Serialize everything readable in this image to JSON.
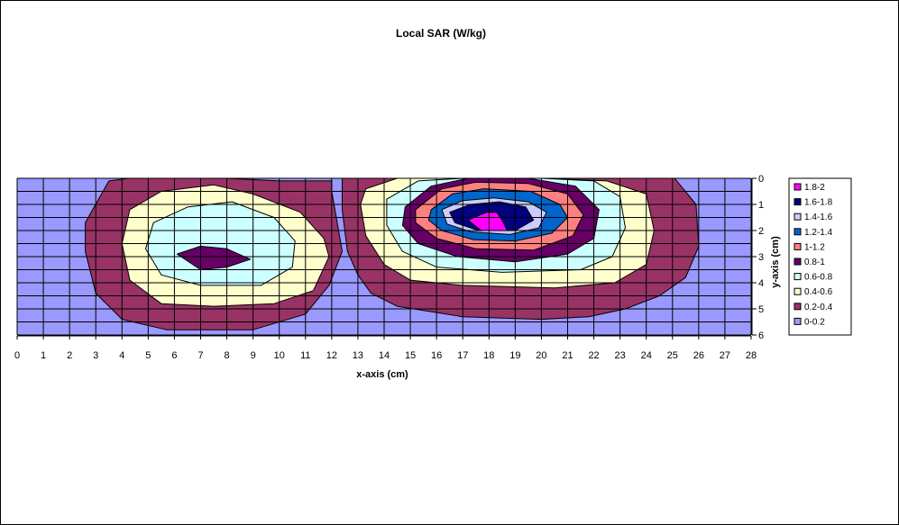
{
  "chart_data": {
    "type": "heatmap",
    "subtype": "contour",
    "title": "Local SAR (W/kg)",
    "xlabel": "x-axis (cm)",
    "ylabel": "y-axis (cm)",
    "xlim": [
      0,
      28
    ],
    "ylim": [
      0,
      6
    ],
    "y_inverted": true,
    "x_ticks": [
      "0",
      "1",
      "2",
      "3",
      "4",
      "5",
      "6",
      "7",
      "8",
      "9",
      "10",
      "11",
      "12",
      "13",
      "14",
      "15",
      "16",
      "17",
      "18",
      "19",
      "20",
      "21",
      "22",
      "23",
      "24",
      "25",
      "26",
      "27",
      "28"
    ],
    "y_ticks": [
      "0",
      "1",
      "2",
      "3",
      "4",
      "5",
      "6"
    ],
    "grid": true,
    "legend_position": "right",
    "levels": [
      {
        "label": "1.8-2",
        "min": 1.8,
        "max": 2.0,
        "color": "#ff00ff"
      },
      {
        "label": "1.6-1.8",
        "min": 1.6,
        "max": 1.8,
        "color": "#000080"
      },
      {
        "label": "1.4-1.6",
        "min": 1.4,
        "max": 1.6,
        "color": "#ccccff"
      },
      {
        "label": "1.2-1.4",
        "min": 1.2,
        "max": 1.4,
        "color": "#0066cc"
      },
      {
        "label": "1-1.2",
        "min": 1.0,
        "max": 1.2,
        "color": "#ff8080"
      },
      {
        "label": "0.8-1",
        "min": 0.8,
        "max": 1.0,
        "color": "#660066"
      },
      {
        "label": "0.6-0.8",
        "min": 0.6,
        "max": 0.8,
        "color": "#ccffff"
      },
      {
        "label": "0.4-0.6",
        "min": 0.4,
        "max": 0.6,
        "color": "#ffffcc"
      },
      {
        "label": "0.2-0.4",
        "min": 0.2,
        "max": 0.4,
        "color": "#993366"
      },
      {
        "label": "0-0.2",
        "min": 0.0,
        "max": 0.2,
        "color": "#9999ff"
      }
    ],
    "contours": [
      {
        "level": "0.2-0.4",
        "points": [
          [
            3.5,
            0.1
          ],
          [
            5,
            -0.1
          ],
          [
            8,
            0
          ],
          [
            10,
            0.1
          ],
          [
            12,
            0.1
          ],
          [
            12,
            0.5
          ],
          [
            12.4,
            2.8
          ],
          [
            11.9,
            4.1
          ],
          [
            11,
            5.2
          ],
          [
            9,
            5.8
          ],
          [
            5.7,
            5.8
          ],
          [
            4,
            5.4
          ],
          [
            3,
            4.4
          ],
          [
            2.6,
            2.8
          ],
          [
            2.6,
            1.7
          ]
        ]
      },
      {
        "level": "0.2-0.4",
        "points": [
          [
            12.4,
            0
          ],
          [
            14.5,
            -0.1
          ],
          [
            17,
            0
          ],
          [
            20,
            0
          ],
          [
            23.5,
            -0.2
          ],
          [
            25,
            -0.1
          ],
          [
            25.9,
            1
          ],
          [
            26,
            2.6
          ],
          [
            25.5,
            3.8
          ],
          [
            24.5,
            4.5
          ],
          [
            23.2,
            5
          ],
          [
            21.8,
            5.3
          ],
          [
            20,
            5.4
          ],
          [
            17,
            5.3
          ],
          [
            14.5,
            4.9
          ],
          [
            13.5,
            4.4
          ],
          [
            13,
            3.7
          ],
          [
            12.6,
            2.8
          ],
          [
            12.4,
            1.2
          ]
        ]
      },
      {
        "level": "0.4-0.6",
        "points": [
          [
            4.3,
            1.2
          ],
          [
            5.5,
            0.5
          ],
          [
            7.5,
            0.25
          ],
          [
            9,
            0.6
          ],
          [
            10.8,
            1.3
          ],
          [
            11.7,
            2.3
          ],
          [
            11.9,
            3
          ],
          [
            11.3,
            4.3
          ],
          [
            9.8,
            4.8
          ],
          [
            7.5,
            4.9
          ],
          [
            5.5,
            4.8
          ],
          [
            4.3,
            3.9
          ],
          [
            4,
            2.5
          ]
        ]
      },
      {
        "level": "0.4-0.6",
        "points": [
          [
            13.3,
            0.4
          ],
          [
            14.5,
            0
          ],
          [
            17,
            0
          ],
          [
            20,
            0
          ],
          [
            22.5,
            0.1
          ],
          [
            24,
            0.6
          ],
          [
            24.3,
            2
          ],
          [
            24,
            3.3
          ],
          [
            22.8,
            4
          ],
          [
            20.5,
            4.2
          ],
          [
            17,
            4.1
          ],
          [
            15,
            3.9
          ],
          [
            14,
            3.3
          ],
          [
            13.3,
            2.2
          ],
          [
            13.1,
            1
          ]
        ]
      },
      {
        "level": "0.6-0.8",
        "points": [
          [
            5.2,
            1.7
          ],
          [
            6.5,
            1.1
          ],
          [
            8.2,
            0.9
          ],
          [
            9.8,
            1.5
          ],
          [
            10.6,
            2.4
          ],
          [
            10.5,
            3.4
          ],
          [
            9.3,
            4.1
          ],
          [
            7,
            4.1
          ],
          [
            5.5,
            3.7
          ],
          [
            4.9,
            2.7
          ]
        ]
      },
      {
        "level": "0.6-0.8",
        "points": [
          [
            14.1,
            0.8
          ],
          [
            15.3,
            0.1
          ],
          [
            17,
            0
          ],
          [
            20,
            0
          ],
          [
            22,
            0.1
          ],
          [
            23,
            0.7
          ],
          [
            23.2,
            1.9
          ],
          [
            22.7,
            3
          ],
          [
            21.5,
            3.5
          ],
          [
            18.5,
            3.6
          ],
          [
            16,
            3.4
          ],
          [
            14.7,
            2.8
          ],
          [
            14.1,
            1.8
          ]
        ]
      },
      {
        "level": "0.8-1",
        "points": [
          [
            6.1,
            2.9
          ],
          [
            7,
            2.6
          ],
          [
            8,
            2.7
          ],
          [
            8.9,
            3.1
          ],
          [
            8,
            3.4
          ],
          [
            7,
            3.5
          ]
        ]
      },
      {
        "level": "0.8-1",
        "points": [
          [
            14.8,
            1.1
          ],
          [
            15.8,
            0.3
          ],
          [
            17.2,
            0
          ],
          [
            19.5,
            0
          ],
          [
            21.3,
            0.3
          ],
          [
            22.2,
            1.2
          ],
          [
            22,
            2.3
          ],
          [
            21,
            2.9
          ],
          [
            19,
            3.2
          ],
          [
            16.8,
            3
          ],
          [
            15.3,
            2.5
          ],
          [
            14.7,
            1.8
          ]
        ]
      },
      {
        "level": "1-1.2",
        "points": [
          [
            15.2,
            1.2
          ],
          [
            16.2,
            0.4
          ],
          [
            17.5,
            0.15
          ],
          [
            19.5,
            0.2
          ],
          [
            21,
            0.6
          ],
          [
            21.6,
            1.4
          ],
          [
            21.2,
            2.2
          ],
          [
            19.7,
            2.75
          ],
          [
            17.5,
            2.7
          ],
          [
            16,
            2.3
          ],
          [
            15.2,
            1.7
          ]
        ]
      },
      {
        "level": "1.2-1.4",
        "points": [
          [
            15.8,
            1.2
          ],
          [
            16.6,
            0.6
          ],
          [
            17.8,
            0.4
          ],
          [
            19.6,
            0.5
          ],
          [
            20.7,
            1
          ],
          [
            21,
            1.5
          ],
          [
            20.4,
            2.1
          ],
          [
            19,
            2.4
          ],
          [
            17.4,
            2.35
          ],
          [
            16.2,
            2
          ],
          [
            15.7,
            1.6
          ]
        ]
      },
      {
        "level": "1.4-1.6",
        "points": [
          [
            16.2,
            1.2
          ],
          [
            17,
            0.85
          ],
          [
            18.2,
            0.75
          ],
          [
            19.5,
            0.9
          ],
          [
            20.2,
            1.3
          ],
          [
            19.9,
            1.9
          ],
          [
            18.8,
            2.15
          ],
          [
            17.3,
            2.05
          ],
          [
            16.4,
            1.75
          ]
        ]
      },
      {
        "level": "1.6-1.8",
        "points": [
          [
            16.5,
            1.3
          ],
          [
            17.3,
            1
          ],
          [
            18.4,
            0.9
          ],
          [
            19.4,
            1.1
          ],
          [
            19.7,
            1.6
          ],
          [
            19,
            2
          ],
          [
            17.6,
            2
          ],
          [
            16.7,
            1.7
          ]
        ]
      },
      {
        "level": "1.8-2",
        "points": [
          [
            17.2,
            1.6
          ],
          [
            17.9,
            1.3
          ],
          [
            18.3,
            1.3
          ],
          [
            18.5,
            1.6
          ],
          [
            18.7,
            2
          ],
          [
            17.7,
            2
          ]
        ]
      }
    ]
  }
}
